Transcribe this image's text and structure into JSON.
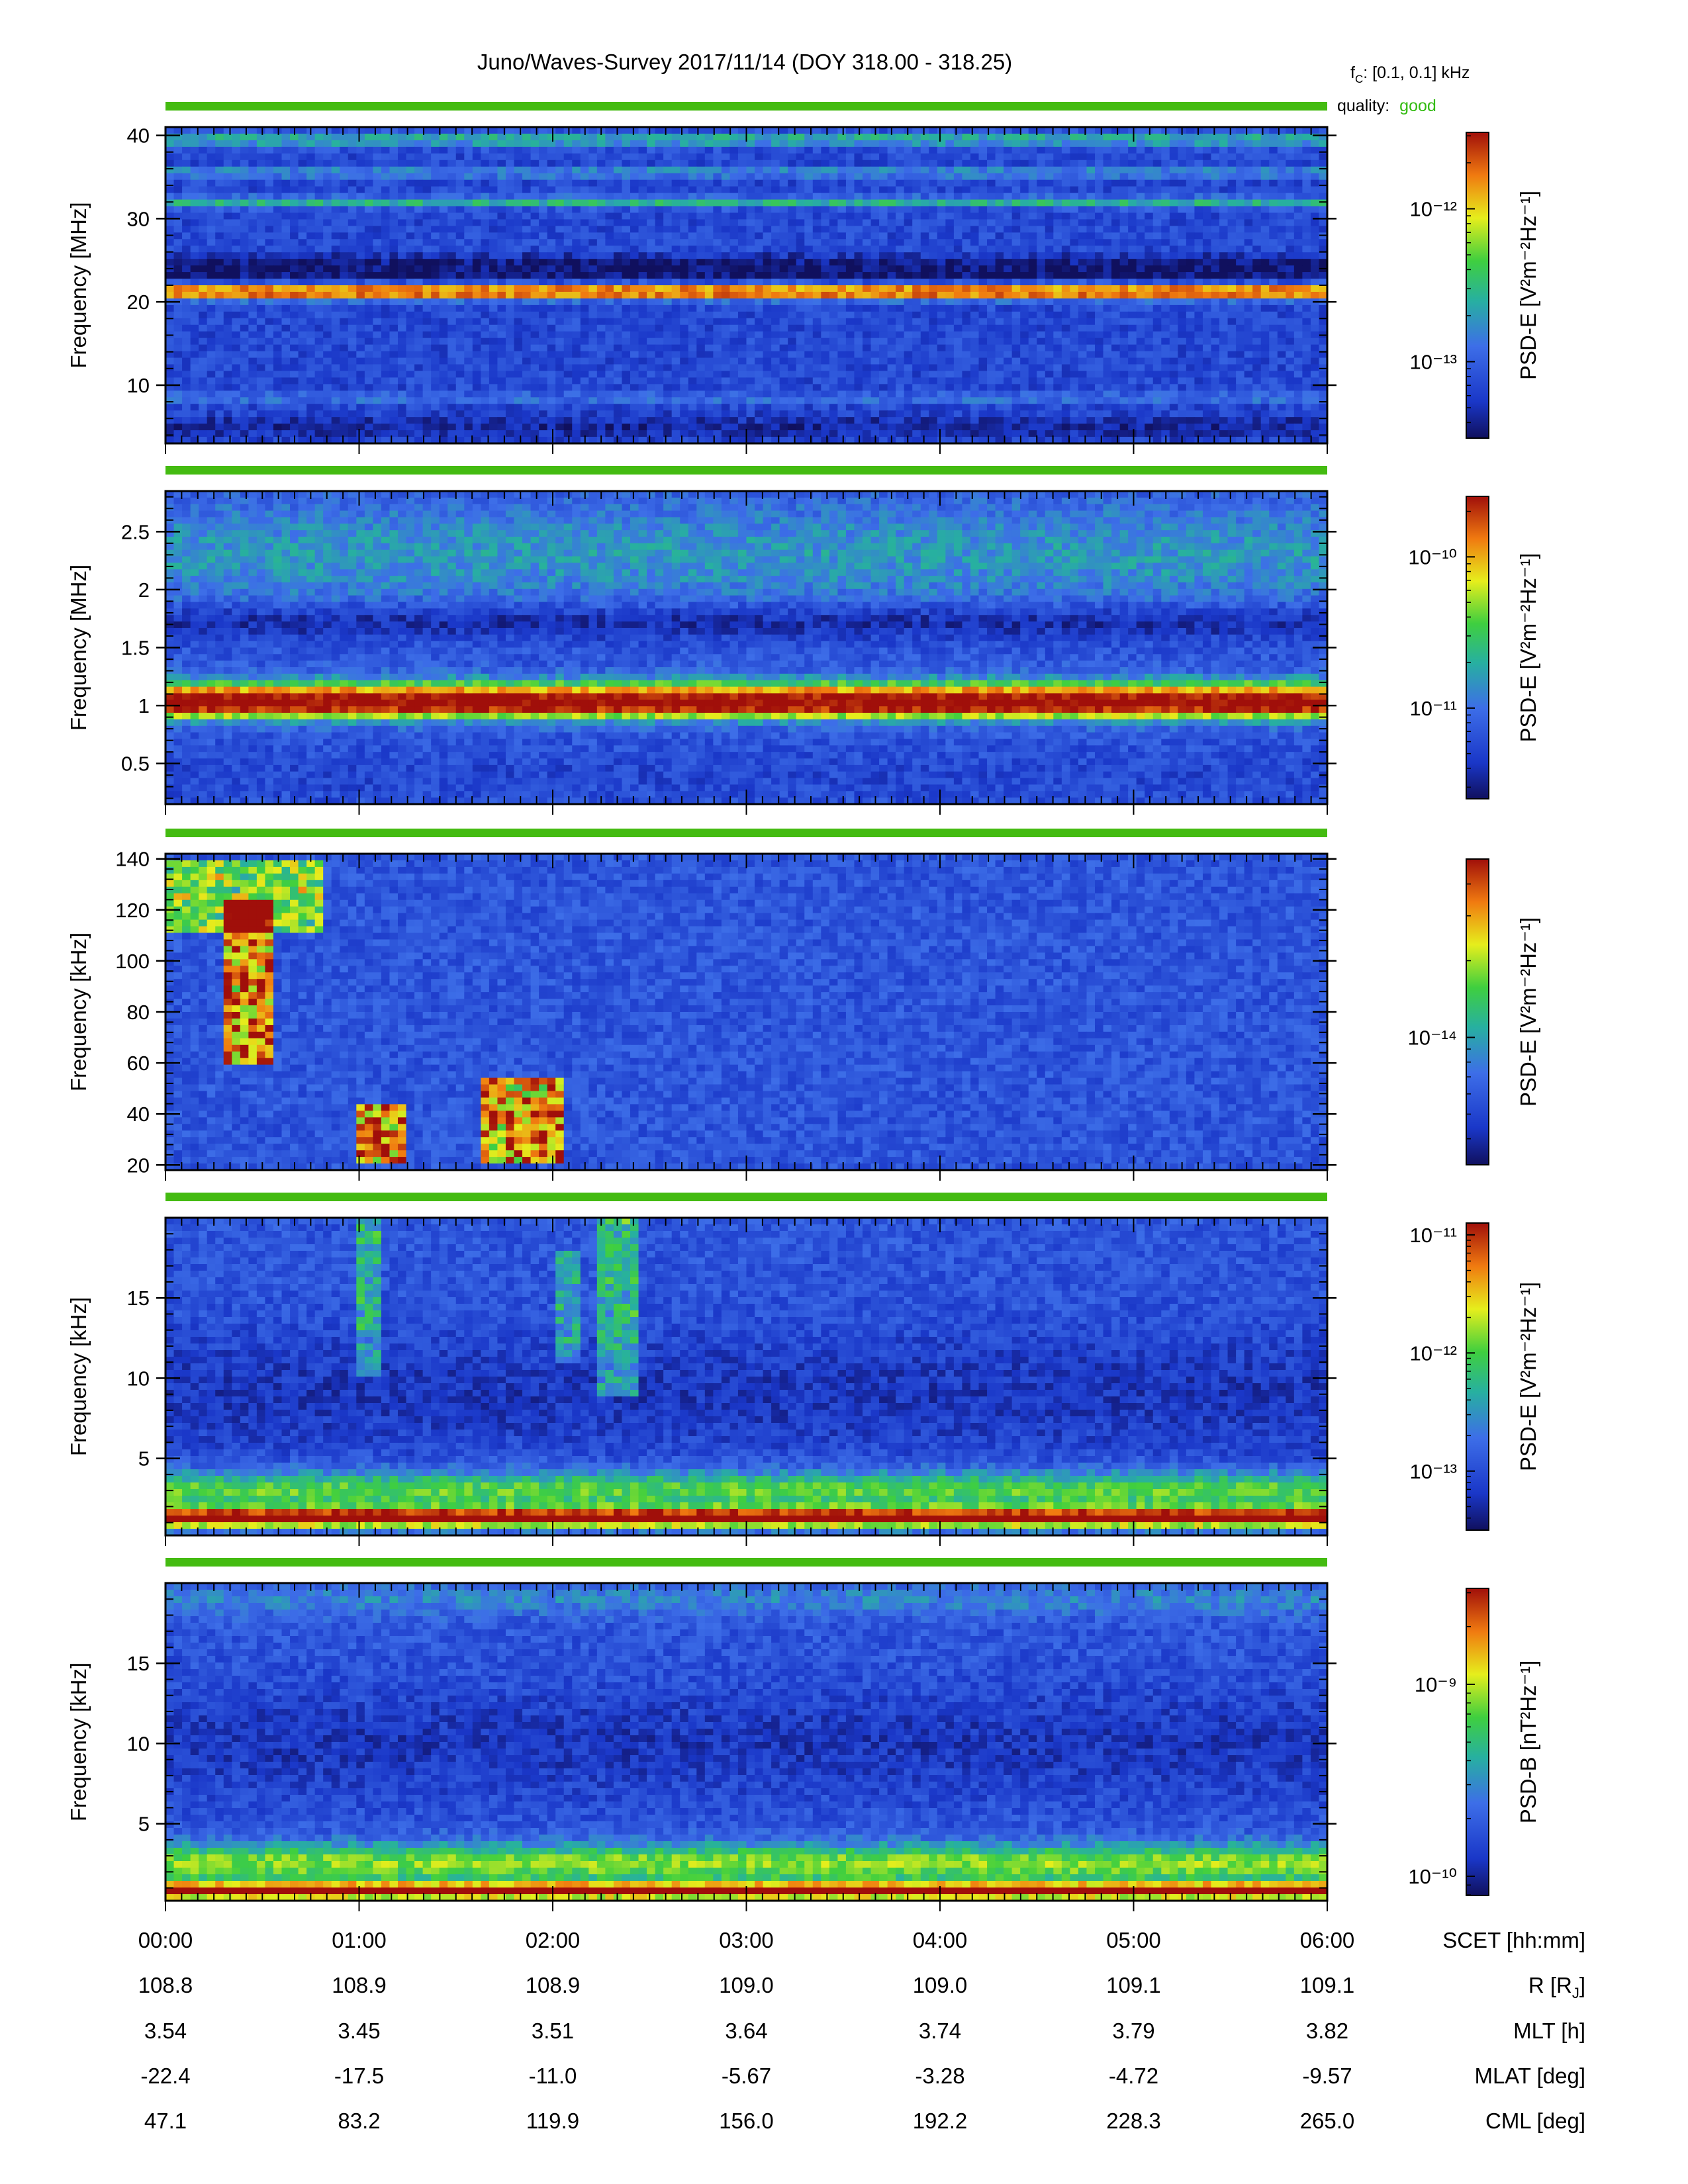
{
  "figure": {
    "title": "Juno/Waves-Survey  2017/11/14 (DOY 318.00 - 318.25)",
    "fc_label": "f",
    "fc_sub": "C",
    "fc_value": ": [0.1, 0.1] kHz",
    "quality_label": "quality:",
    "quality_value": "good",
    "quality_color": "#33bb11"
  },
  "chart_data": [
    {
      "type": "heatmap",
      "ylabel": "Frequency [MHz]",
      "yticks": [
        10,
        20,
        30,
        40
      ],
      "ylim": [
        3,
        41
      ],
      "colorbar": {
        "label": "PSD-E [V²m⁻²Hz⁻¹]",
        "log_range": [
          -13.5,
          -11.5
        ],
        "ticks": [
          {
            "exp": -12,
            "text": "10⁻¹²"
          },
          {
            "exp": -13,
            "text": "10⁻¹³"
          }
        ]
      },
      "bands": [
        {
          "f": 21.2,
          "width": 1.6,
          "intensity": 1.0
        },
        {
          "f": 23.5,
          "width": 2.2,
          "intensity": -0.8
        },
        {
          "f": 25.0,
          "width": 1.5,
          "intensity": -0.5
        },
        {
          "f": 32.0,
          "width": 1.2,
          "intensity": 0.35
        },
        {
          "f": 35.5,
          "width": 1.0,
          "intensity": 0.3
        },
        {
          "f": 39.5,
          "width": 1.5,
          "intensity": 0.35
        },
        {
          "f": 8.5,
          "width": 0.8,
          "intensity": 0.25
        },
        {
          "f": 5.0,
          "width": 2.5,
          "intensity": -0.5
        }
      ],
      "background": 0.18
    },
    {
      "type": "heatmap",
      "ylabel": "Frequency [MHz]",
      "yticks": [
        0.5,
        1.0,
        1.5,
        2.0,
        2.5
      ],
      "ylim": [
        0.15,
        2.85
      ],
      "colorbar": {
        "label": "PSD-E [V²m⁻²Hz⁻¹]",
        "log_range": [
          -11.6,
          -9.6
        ],
        "ticks": [
          {
            "exp": -10,
            "text": "10⁻¹⁰"
          },
          {
            "exp": -11,
            "text": "10⁻¹¹"
          }
        ]
      },
      "bands": [
        {
          "f": 1.05,
          "width": 0.3,
          "intensity": 0.95
        },
        {
          "f": 0.95,
          "width": 0.12,
          "intensity": 0.2
        },
        {
          "f": 1.72,
          "width": 0.3,
          "intensity": -0.7
        },
        {
          "f": 2.3,
          "width": 0.9,
          "intensity": 0.2
        },
        {
          "f": 0.4,
          "width": 0.5,
          "intensity": -0.2
        }
      ],
      "background": 0.22
    },
    {
      "type": "heatmap",
      "ylabel": "Frequency [kHz]",
      "yticks": [
        20,
        40,
        60,
        80,
        100,
        120,
        140
      ],
      "ylim": [
        18,
        142
      ],
      "colorbar": {
        "label": "PSD-E [V²m⁻²Hz⁻¹]",
        "log_range": [
          -14.5,
          -13.3
        ],
        "ticks": [
          {
            "exp": -14,
            "text": "10⁻¹⁴"
          }
        ]
      },
      "bands": [],
      "background": 0.22,
      "bursts": [
        {
          "t0": 0.3,
          "t1": 0.55,
          "f0": 60,
          "f1": 125,
          "intensity": 0.9
        },
        {
          "t0": 0.0,
          "t1": 0.8,
          "f0": 110,
          "f1": 140,
          "intensity": 0.55
        },
        {
          "t0": 1.0,
          "t1": 1.25,
          "f0": 20,
          "f1": 45,
          "intensity": 0.85
        },
        {
          "t0": 1.65,
          "t1": 2.05,
          "f0": 20,
          "f1": 55,
          "intensity": 0.85
        }
      ]
    },
    {
      "type": "heatmap",
      "ylabel": "Frequency [kHz]",
      "yticks": [
        5,
        10,
        15
      ],
      "ylim": [
        0.2,
        20
      ],
      "colorbar": {
        "label": "PSD-E [V²m⁻²Hz⁻¹]",
        "log_range": [
          -13.5,
          -10.9
        ],
        "ticks": [
          {
            "exp": -11,
            "text": "10⁻¹¹"
          },
          {
            "exp": -12,
            "text": "10⁻¹²"
          },
          {
            "exp": -13,
            "text": "10⁻¹³"
          }
        ]
      },
      "bands": [
        {
          "f": 1.3,
          "width": 1.2,
          "intensity": 1.0
        },
        {
          "f": 3.0,
          "width": 2.4,
          "intensity": 0.45
        },
        {
          "f": 9.0,
          "width": 8.0,
          "intensity": -0.45
        }
      ],
      "background": 0.22,
      "bursts": [
        {
          "t0": 1.0,
          "t1": 1.1,
          "f0": 10,
          "f1": 20,
          "intensity": 0.35
        },
        {
          "t0": 2.0,
          "t1": 2.15,
          "f0": 11,
          "f1": 18,
          "intensity": 0.3
        },
        {
          "t0": 2.25,
          "t1": 2.45,
          "f0": 9,
          "f1": 20,
          "intensity": 0.38
        }
      ]
    },
    {
      "type": "heatmap",
      "ylabel": "Frequency [kHz]",
      "yticks": [
        5,
        10,
        15
      ],
      "ylim": [
        0.2,
        20
      ],
      "colorbar": {
        "label": "PSD-B [nT²Hz⁻¹]",
        "log_range": [
          -10.1,
          -8.5
        ],
        "ticks": [
          {
            "exp": -9,
            "text": "10⁻⁹"
          },
          {
            "exp": -10,
            "text": "10⁻¹⁰"
          }
        ]
      },
      "bands": [
        {
          "f": 0.8,
          "width": 1.0,
          "intensity": 1.0
        },
        {
          "f": 2.5,
          "width": 2.5,
          "intensity": 0.5
        },
        {
          "f": 10.0,
          "width": 7.0,
          "intensity": -0.45
        },
        {
          "f": 19.0,
          "width": 2.0,
          "intensity": 0.15
        }
      ],
      "background": 0.22
    }
  ],
  "time_axis": {
    "labels": [
      "00:00",
      "01:00",
      "02:00",
      "03:00",
      "04:00",
      "05:00",
      "06:00"
    ],
    "range_hours": [
      0,
      6
    ]
  },
  "ephemeris": [
    {
      "name": "SCET [hh:mm]",
      "values": [
        "00:00",
        "01:00",
        "02:00",
        "03:00",
        "04:00",
        "05:00",
        "06:00"
      ]
    },
    {
      "name": "R [R",
      "sub": "J",
      "close": "]",
      "values": [
        "108.8",
        "108.9",
        "108.9",
        "109.0",
        "109.0",
        "109.1",
        "109.1"
      ]
    },
    {
      "name": "MLT [h]",
      "values": [
        "3.54",
        "3.45",
        "3.51",
        "3.64",
        "3.74",
        "3.79",
        "3.82"
      ]
    },
    {
      "name": "MLAT [deg]",
      "values": [
        "-22.4",
        "-17.5",
        "-11.0",
        "-5.67",
        "-3.28",
        "-4.72",
        "-9.57"
      ]
    },
    {
      "name": "CML [deg]",
      "values": [
        "47.1",
        "83.2",
        "119.9",
        "156.0",
        "192.2",
        "228.3",
        "265.0"
      ]
    }
  ]
}
